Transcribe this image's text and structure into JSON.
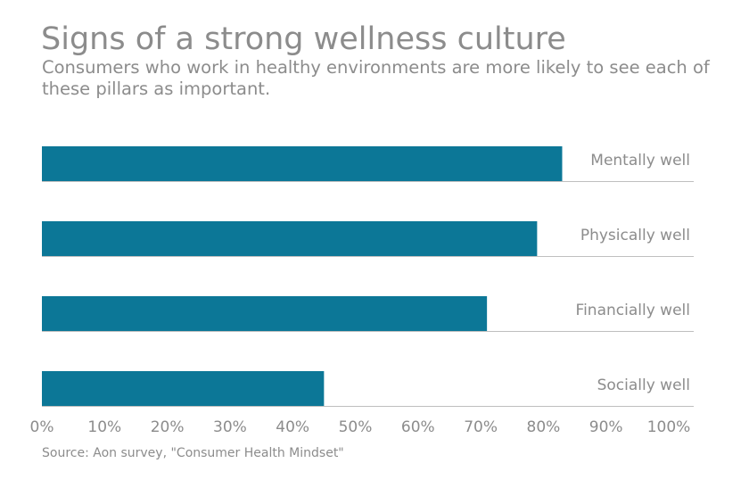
{
  "title": "Signs of a strong wellness culture",
  "subtitle": "Consumers who work in healthy environments are more likely to see each of these pillars as important.",
  "source": "Source: Aon survey, \"Consumer Health Mindset\"",
  "colors": {
    "bar": "#0c7797",
    "text": "#8c8c8c",
    "rule": "#bfbfbf"
  },
  "chart_data": {
    "type": "bar",
    "orientation": "horizontal",
    "categories": [
      "Mentally well",
      "Physically well",
      "Financially well",
      "Socially well"
    ],
    "values": [
      83,
      79,
      71,
      45
    ],
    "xlim": [
      0,
      100
    ],
    "ticks": [
      "0%",
      "10%",
      "20%",
      "30%",
      "40%",
      "50%",
      "60%",
      "70%",
      "80%",
      "90%",
      "100%"
    ],
    "category_label_position": "right",
    "grid": false
  }
}
